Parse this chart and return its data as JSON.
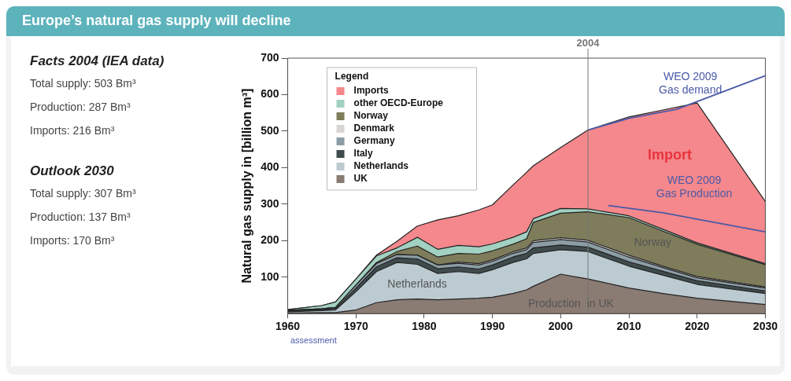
{
  "chart_data": {
    "type": "area",
    "title": "Europe’s natural gas supply will decline",
    "ylabel": "Natural gas supply in [billion m³]",
    "stacked": true,
    "legend": "top left",
    "legend_title": "Legend",
    "grid": false,
    "marker": "none",
    "x": [
      1960,
      1965,
      1967,
      1970,
      1973,
      1976,
      1979,
      1982,
      1985,
      1988,
      1990,
      1993,
      1995,
      1996,
      2000,
      2004,
      2010,
      2015,
      2020,
      2030
    ],
    "xlim": [
      1960,
      2030
    ],
    "xticks": [
      1960,
      1970,
      1980,
      1990,
      2000,
      2010,
      2020,
      2030
    ],
    "ylim": [
      0,
      700
    ],
    "yticks": [
      100,
      200,
      300,
      400,
      500,
      600,
      700
    ],
    "series": [
      {
        "name": "UK",
        "color": "#8a7b73",
        "values": [
          2,
          3,
          3,
          10,
          30,
          38,
          40,
          38,
          40,
          42,
          45,
          55,
          65,
          75,
          108,
          95,
          70,
          55,
          42,
          25
        ]
      },
      {
        "name": "Netherlands",
        "color": "#bccbd1",
        "values": [
          3,
          5,
          7,
          50,
          85,
          102,
          95,
          72,
          75,
          68,
          75,
          85,
          85,
          90,
          67,
          75,
          60,
          50,
          38,
          30
        ]
      },
      {
        "name": "Italy",
        "color": "#3f4b4d",
        "values": [
          3,
          3,
          4,
          10,
          13,
          13,
          15,
          13,
          13,
          12,
          13,
          15,
          15,
          15,
          13,
          12,
          12,
          11,
          10,
          7
        ]
      },
      {
        "name": "Germany",
        "color": "#8c9da5",
        "values": [
          1,
          2,
          3,
          8,
          9,
          9,
          10,
          10,
          10,
          11,
          10,
          10,
          10,
          15,
          15,
          14,
          13,
          10,
          8,
          8
        ]
      },
      {
        "name": "Denmark",
        "color": "#d9d5d2",
        "values": [
          0,
          0,
          0,
          0,
          0,
          0,
          0,
          0,
          3,
          4,
          4,
          4,
          5,
          5,
          5,
          5,
          5,
          4,
          4,
          3
        ]
      },
      {
        "name": "Norway",
        "color": "#7e7c5a",
        "values": [
          0,
          0,
          0,
          0,
          3,
          8,
          25,
          22,
          24,
          26,
          25,
          21,
          25,
          50,
          67,
          78,
          103,
          96,
          88,
          61
        ]
      },
      {
        "name": "other OECD-Europe",
        "color": "#a3d1c1",
        "values": [
          2,
          9,
          15,
          17,
          18,
          10,
          24,
          21,
          22,
          20,
          19,
          19,
          19,
          10,
          13,
          8,
          5,
          5,
          4,
          3
        ]
      },
      {
        "name": "Imports",
        "color": "#f4888c",
        "values": [
          0,
          0,
          0,
          0,
          2,
          18,
          31,
          81,
          81,
          101,
          107,
          143,
          163,
          145,
          167,
          216,
          271,
          327,
          383,
          170
        ]
      },
      {
        "type": "line",
        "color": "#4b5aa8",
        "x": [
          2004,
          2010,
          2017,
          2030
        ],
        "values": [
          503,
          535,
          560,
          652
        ]
      },
      {
        "type": "line",
        "color": "#4b5aa8",
        "x": [
          2007,
          2015,
          2030
        ],
        "values": [
          296,
          276,
          224
        ]
      }
    ],
    "ref_lines": [
      {
        "axis": "x",
        "value": 2004,
        "label": "2004",
        "color": "#777777"
      }
    ],
    "annotations": [
      "Facts 2004 (IEA data)",
      "Total supply: 503 Bm³",
      "Production: 287 Bm³",
      "Imports: 216 Bm³",
      "Outlook 2030",
      "Total supply: 307 Bm³",
      "Production: 137 Bm³",
      "Imports: 170 Bm³",
      "assessment",
      "Import",
      "Norway",
      "Netherlands",
      "Production  in UK",
      "WEO 2009\nGas demand",
      "WEO 2009\nGas Production"
    ]
  }
}
